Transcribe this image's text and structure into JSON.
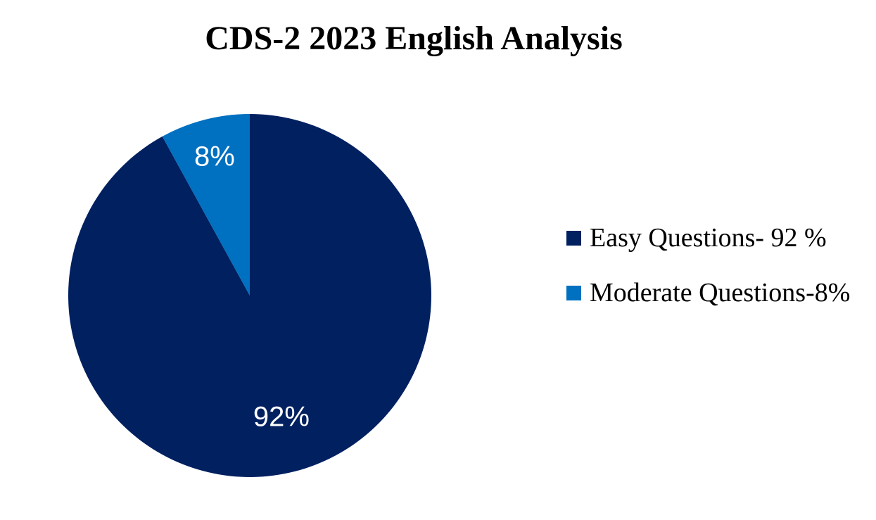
{
  "chart_data": {
    "type": "pie",
    "title": "CDS-2 2023 English Analysis",
    "categories": [
      "Easy Questions- 92 %",
      "Moderate Questions-8%"
    ],
    "values": [
      92,
      8
    ],
    "value_labels": [
      "92%",
      "8%"
    ],
    "colors": [
      "#002060",
      "#0070c0"
    ],
    "legend": "right"
  }
}
